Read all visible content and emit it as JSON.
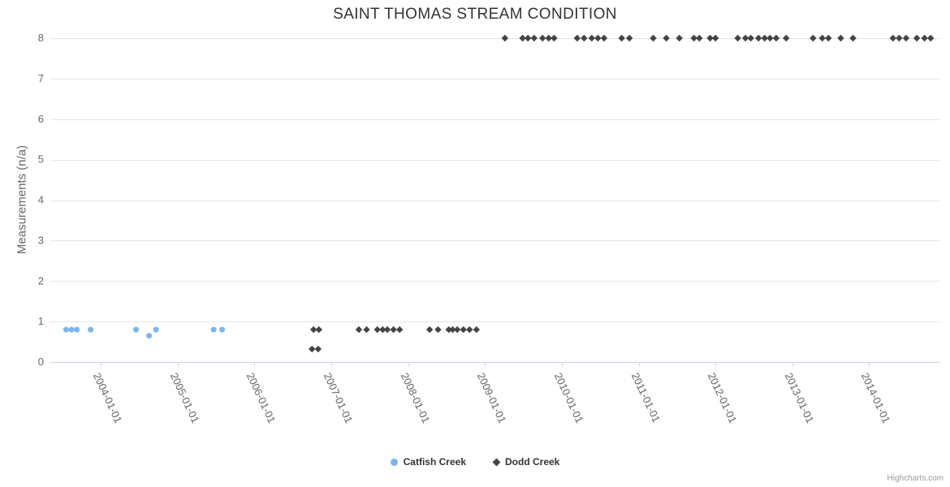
{
  "title": "SAINT THOMAS STREAM CONDITION",
  "credits": "Highcharts.com",
  "chart_data": {
    "type": "scatter",
    "title": "SAINT THOMAS STREAM CONDITION",
    "xlabel": "",
    "ylabel": "Measurements (n/a)",
    "xlim": [
      2003.345,
      2014.925
    ],
    "ylim": [
      0,
      8
    ],
    "y_ticks": [
      0,
      1,
      2,
      3,
      4,
      5,
      6,
      7,
      8
    ],
    "x_tick_years": [
      2004,
      2005,
      2006,
      2007,
      2008,
      2009,
      2010,
      2011,
      2012,
      2013,
      2014
    ],
    "x_tick_labels": [
      "2004-01-01",
      "2005-01-01",
      "2006-01-01",
      "2007-01-01",
      "2008-01-01",
      "2009-01-01",
      "2010-01-01",
      "2011-01-01",
      "2012-01-01",
      "2013-01-01",
      "2014-01-01"
    ],
    "grid": "horizontal-only",
    "grid_color": "#e6e6e6",
    "axis_line_color": "#ccd6eb",
    "tick_label_color": "#666666",
    "legend_position": "bottom",
    "series": [
      {
        "name": "Catfish Creek",
        "color": "#7cb5ec",
        "marker": "circle",
        "points": [
          [
            2003.55,
            0.8
          ],
          [
            2003.62,
            0.8
          ],
          [
            2003.69,
            0.8
          ],
          [
            2003.87,
            0.8
          ],
          [
            2004.46,
            0.8
          ],
          [
            2004.63,
            0.65
          ],
          [
            2004.72,
            0.8
          ],
          [
            2005.47,
            0.8
          ],
          [
            2005.58,
            0.8
          ]
        ]
      },
      {
        "name": "Dodd Creek",
        "color": "#434348",
        "marker": "diamond",
        "points": [
          [
            2006.75,
            0.32
          ],
          [
            2006.83,
            0.32
          ],
          [
            2006.77,
            0.8
          ],
          [
            2006.84,
            0.8
          ],
          [
            2007.36,
            0.8
          ],
          [
            2007.46,
            0.8
          ],
          [
            2007.6,
            0.8
          ],
          [
            2007.67,
            0.8
          ],
          [
            2007.73,
            0.8
          ],
          [
            2007.81,
            0.8
          ],
          [
            2007.89,
            0.8
          ],
          [
            2008.28,
            0.8
          ],
          [
            2008.39,
            0.8
          ],
          [
            2008.53,
            0.8
          ],
          [
            2008.58,
            0.8
          ],
          [
            2008.64,
            0.8
          ],
          [
            2008.72,
            0.8
          ],
          [
            2008.8,
            0.8
          ],
          [
            2008.89,
            0.8
          ],
          [
            2009.26,
            8
          ],
          [
            2009.49,
            8
          ],
          [
            2009.56,
            8
          ],
          [
            2009.64,
            8
          ],
          [
            2009.75,
            8
          ],
          [
            2009.83,
            8
          ],
          [
            2009.9,
            8
          ],
          [
            2010.2,
            8
          ],
          [
            2010.29,
            8
          ],
          [
            2010.39,
            8
          ],
          [
            2010.47,
            8
          ],
          [
            2010.55,
            8
          ],
          [
            2010.78,
            8
          ],
          [
            2010.88,
            8
          ],
          [
            2011.19,
            8
          ],
          [
            2011.36,
            8
          ],
          [
            2011.53,
            8
          ],
          [
            2011.72,
            8
          ],
          [
            2011.79,
            8
          ],
          [
            2011.93,
            8
          ],
          [
            2012.0,
            8
          ],
          [
            2012.29,
            8
          ],
          [
            2012.39,
            8
          ],
          [
            2012.46,
            8
          ],
          [
            2012.56,
            8
          ],
          [
            2012.64,
            8
          ],
          [
            2012.71,
            8
          ],
          [
            2012.79,
            8
          ],
          [
            2012.92,
            8
          ],
          [
            2013.27,
            8
          ],
          [
            2013.39,
            8
          ],
          [
            2013.47,
            8
          ],
          [
            2013.63,
            8
          ],
          [
            2013.79,
            8
          ],
          [
            2014.31,
            8
          ],
          [
            2014.39,
            8
          ],
          [
            2014.48,
            8
          ],
          [
            2014.62,
            8
          ],
          [
            2014.72,
            8
          ],
          [
            2014.8,
            8
          ]
        ]
      }
    ]
  }
}
